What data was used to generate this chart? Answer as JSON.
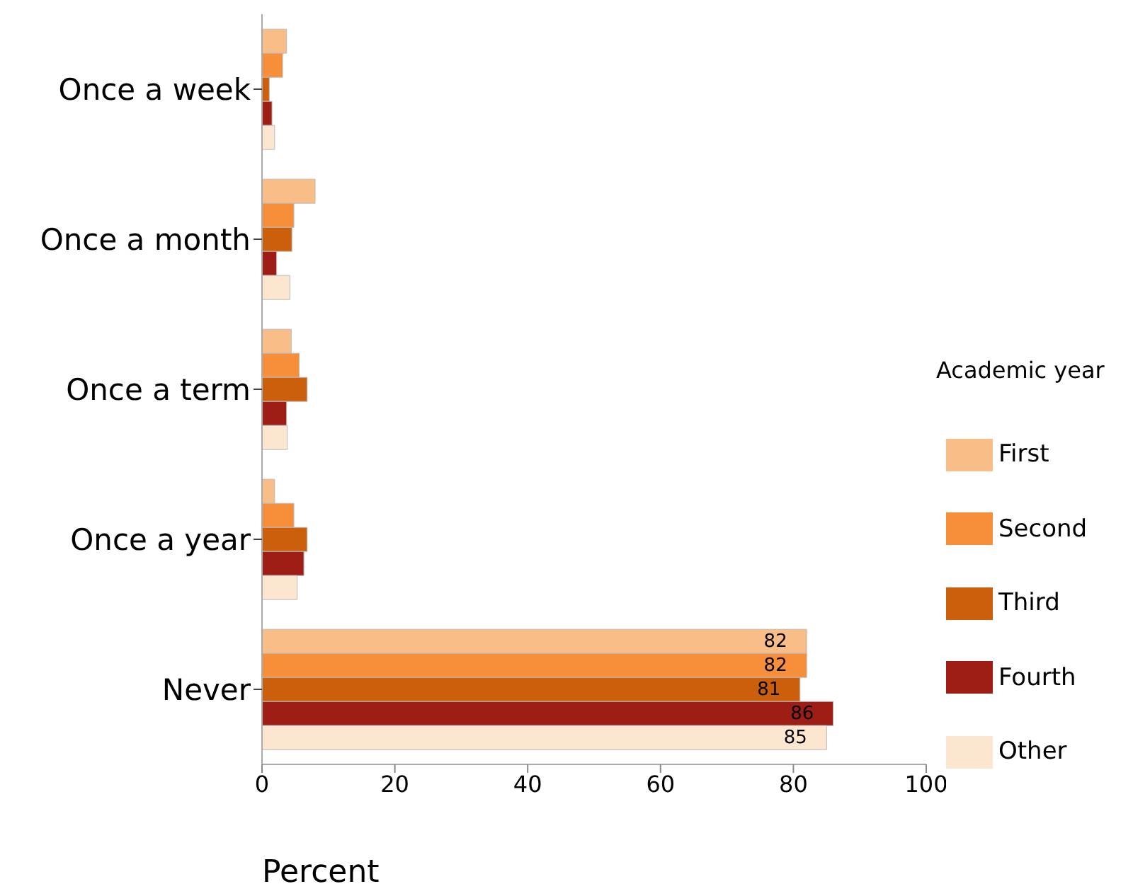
{
  "chart_data": {
    "type": "bar",
    "orientation": "horizontal",
    "xlabel": "Percent",
    "legend_title": "Academic year",
    "legend": "right",
    "grid": false,
    "categories": [
      "Once a week",
      "Once a month",
      "Once a term",
      "Once a year",
      "Never"
    ],
    "xlim": [
      0,
      100
    ],
    "xticks": [
      0,
      20,
      40,
      60,
      80,
      100
    ],
    "series": [
      {
        "name": "First",
        "color": "#f9be87",
        "values": [
          3.7,
          8.0,
          4.4,
          1.9,
          82
        ],
        "value_labels": [
          null,
          null,
          null,
          null,
          "82"
        ]
      },
      {
        "name": "Second",
        "color": "#f78f3a",
        "values": [
          3.1,
          4.8,
          5.6,
          4.8,
          82
        ],
        "value_labels": [
          null,
          null,
          null,
          null,
          "82"
        ]
      },
      {
        "name": "Third",
        "color": "#cc5f0c",
        "values": [
          1.1,
          4.5,
          6.8,
          6.8,
          81
        ],
        "value_labels": [
          null,
          null,
          null,
          null,
          "81"
        ]
      },
      {
        "name": "Fourth",
        "color": "#9e1e16",
        "values": [
          1.5,
          2.2,
          3.7,
          6.3,
          86
        ],
        "value_labels": [
          null,
          null,
          null,
          null,
          "86"
        ]
      },
      {
        "name": "Other",
        "color": "#fde6cf",
        "values": [
          1.9,
          4.2,
          3.8,
          5.3,
          85
        ],
        "value_labels": [
          null,
          null,
          null,
          null,
          "85"
        ]
      }
    ]
  }
}
